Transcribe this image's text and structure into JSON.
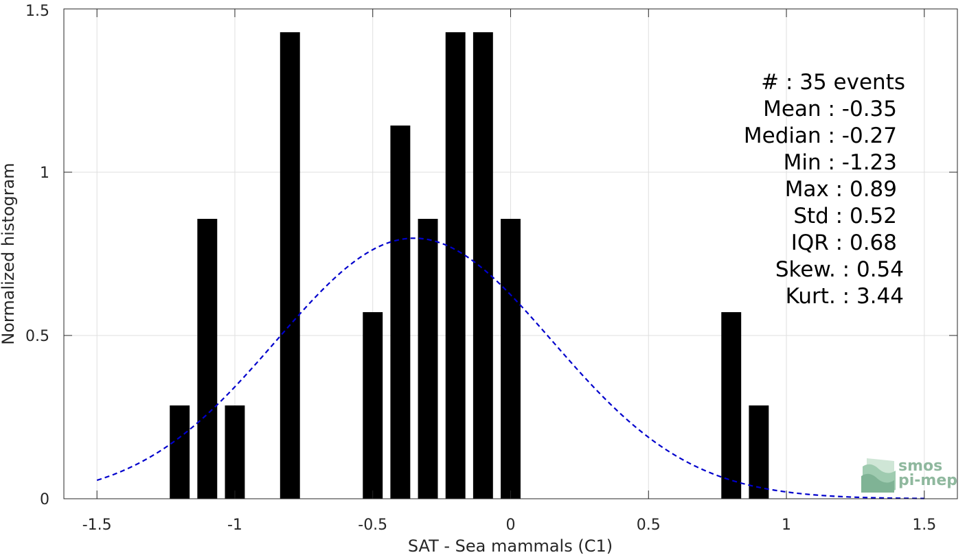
{
  "chart_data": {
    "type": "bar",
    "xlabel": "SAT - Sea mammals (C1)",
    "ylabel": "Normalized histogram",
    "xlim": [
      -1.62,
      1.62
    ],
    "ylim": [
      0,
      1.5
    ],
    "xticks": [
      -1.5,
      -1,
      -0.5,
      0,
      0.5,
      1,
      1.5
    ],
    "xtick_labels": [
      "-1.5",
      "-1",
      "-0.5",
      "0",
      "0.5",
      "1",
      "1.5"
    ],
    "yticks": [
      0,
      0.5,
      1,
      1.5
    ],
    "ytick_labels": [
      "0",
      "0.5",
      "1",
      "1.5"
    ],
    "grid": true,
    "bin_width": 0.1,
    "bar_color": "#000000",
    "bars": [
      {
        "x": -1.2,
        "value": 0.2857
      },
      {
        "x": -1.1,
        "value": 0.8571
      },
      {
        "x": -1.0,
        "value": 0.2857
      },
      {
        "x": -0.8,
        "value": 1.4286
      },
      {
        "x": -0.5,
        "value": 0.5714
      },
      {
        "x": -0.4,
        "value": 1.1429
      },
      {
        "x": -0.3,
        "value": 0.8571
      },
      {
        "x": -0.2,
        "value": 1.4286
      },
      {
        "x": -0.1,
        "value": 1.4286
      },
      {
        "x": 0.0,
        "value": 0.8571
      },
      {
        "x": 0.8,
        "value": 0.5714
      },
      {
        "x": 0.9,
        "value": 0.2857
      }
    ],
    "fit": {
      "type": "normal",
      "mean": -0.35,
      "std": 0.5,
      "x_range": [
        -1.5,
        1.5
      ],
      "color": "#0000cc",
      "style": "dashed"
    },
    "stats": {
      "count": "#  : 35 events",
      "mean": "Mean : -0.35",
      "median": "Median : -0.27",
      "min": "Min : -1.23",
      "max": "Max : 0.89",
      "std": "Std : 0.52",
      "iqr": "IQR : 0.68",
      "skew": "Skew. : 0.54",
      "kurt": "Kurt. : 3.44"
    }
  },
  "logo": {
    "line1": "smos",
    "line2": "pi-mep"
  }
}
